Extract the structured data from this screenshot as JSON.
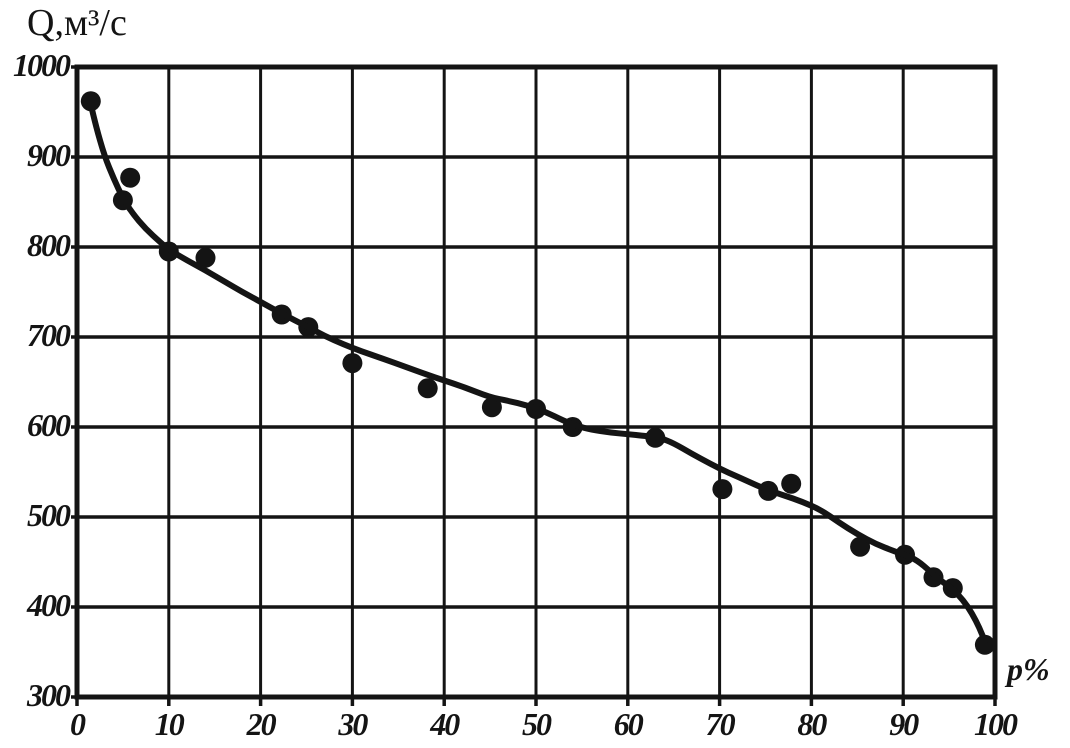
{
  "figure": {
    "background": "#ffffff",
    "ink_color": "#141414"
  },
  "chart_data": {
    "type": "scatter",
    "title": "",
    "ylabel": "Q,м³/с",
    "xlabel": "p%",
    "xlim": [
      0,
      100
    ],
    "ylim": [
      300,
      1000
    ],
    "x_ticks": [
      0,
      10,
      20,
      30,
      40,
      50,
      60,
      70,
      80,
      90,
      100
    ],
    "y_ticks": [
      300,
      400,
      500,
      600,
      700,
      800,
      900,
      1000
    ],
    "grid": true,
    "legend_position": "none",
    "series": [
      {
        "name": "observed-discharge-points",
        "type": "scatter",
        "marker": "filled-circle",
        "points": [
          [
            1.5,
            962
          ],
          [
            5,
            852
          ],
          [
            5.8,
            877
          ],
          [
            10,
            795
          ],
          [
            14,
            788
          ],
          [
            22.3,
            725
          ],
          [
            25.2,
            711
          ],
          [
            30,
            671
          ],
          [
            38.2,
            643
          ],
          [
            45.2,
            622
          ],
          [
            50,
            620
          ],
          [
            54,
            600
          ],
          [
            63,
            588
          ],
          [
            70.3,
            531
          ],
          [
            75.3,
            529
          ],
          [
            77.8,
            537
          ],
          [
            85.3,
            467
          ],
          [
            90.2,
            458
          ],
          [
            93.3,
            433
          ],
          [
            95.4,
            421
          ],
          [
            98.9,
            358
          ]
        ]
      },
      {
        "name": "fitted-duration-curve",
        "type": "line",
        "points": [
          [
            1.4,
            963
          ],
          [
            2,
            936
          ],
          [
            3,
            901
          ],
          [
            4,
            876
          ],
          [
            5,
            854
          ],
          [
            6,
            838
          ],
          [
            7.5,
            820
          ],
          [
            9,
            806
          ],
          [
            10,
            797
          ],
          [
            12,
            785
          ],
          [
            14,
            774
          ],
          [
            16,
            762
          ],
          [
            18,
            750
          ],
          [
            20,
            739
          ],
          [
            22.3,
            726
          ],
          [
            25,
            712
          ],
          [
            27,
            701
          ],
          [
            29,
            692
          ],
          [
            31,
            684
          ],
          [
            33,
            677
          ],
          [
            36,
            666
          ],
          [
            39,
            655
          ],
          [
            42,
            645
          ],
          [
            45,
            633
          ],
          [
            47,
            629
          ],
          [
            49,
            624
          ],
          [
            51,
            617
          ],
          [
            53,
            607
          ],
          [
            54.5,
            601
          ],
          [
            56,
            597
          ],
          [
            58,
            594
          ],
          [
            60,
            592
          ],
          [
            62,
            590
          ],
          [
            63.5,
            588
          ],
          [
            65,
            582
          ],
          [
            67,
            570
          ],
          [
            69,
            559
          ],
          [
            71,
            549
          ],
          [
            73,
            540
          ],
          [
            75,
            531
          ],
          [
            77,
            524
          ],
          [
            79,
            517
          ],
          [
            81,
            508
          ],
          [
            83,
            494
          ],
          [
            85,
            481
          ],
          [
            87,
            470
          ],
          [
            89,
            462
          ],
          [
            90.2,
            458
          ],
          [
            91.5,
            452
          ],
          [
            93,
            439
          ],
          [
            94,
            430
          ],
          [
            95.4,
            420
          ],
          [
            96.5,
            408
          ],
          [
            97.5,
            393
          ],
          [
            98.3,
            377
          ],
          [
            98.9,
            362
          ]
        ]
      }
    ]
  }
}
